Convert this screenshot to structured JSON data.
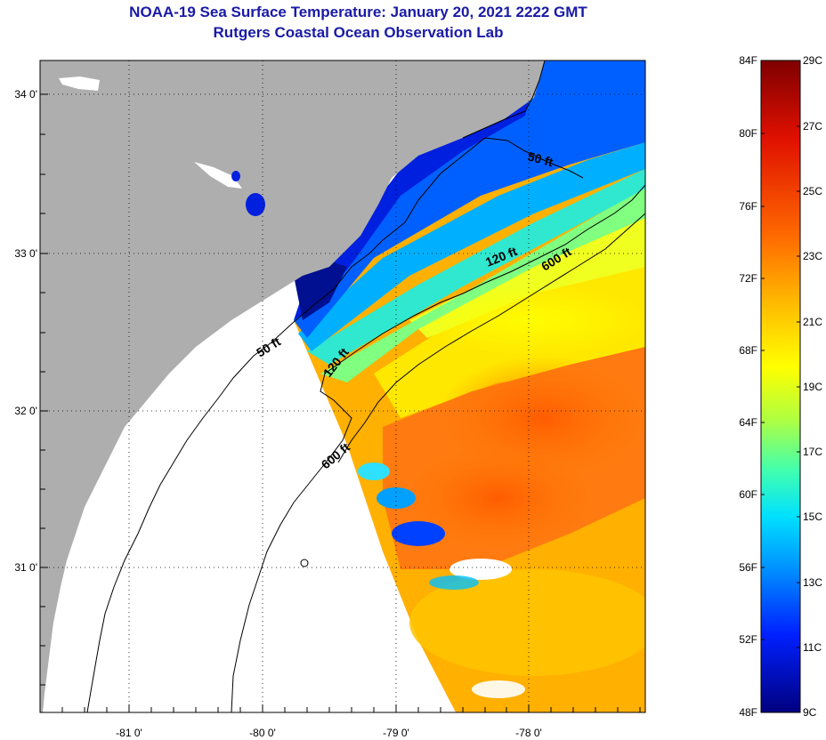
{
  "title": {
    "line1": "NOAA-19 Sea Surface Temperature:  January 20, 2021 2222 GMT",
    "line2": "Rutgers Coastal Ocean Observation Lab"
  },
  "axes": {
    "longitude_labels": [
      "-81 0'",
      "-80 0'",
      "-79 0'",
      "-78 0'"
    ],
    "latitude_labels": [
      "34 0'",
      "33 0'",
      "32 0'",
      "31 0'"
    ]
  },
  "contours": {
    "a": "50 ft",
    "b": "120 ft",
    "c": "600 ft",
    "d": "50 ft",
    "e": "120 ft",
    "f": "600 ft"
  },
  "colorbar": {
    "fahrenheit": [
      "84F",
      "80F",
      "76F",
      "72F",
      "68F",
      "64F",
      "60F",
      "56F",
      "52F",
      "48F"
    ],
    "celsius": [
      "29C",
      "27C",
      "25C",
      "23C",
      "21C",
      "19C",
      "17C",
      "15C",
      "13C",
      "11C",
      "9C"
    ]
  },
  "colors": {
    "land": "#aeaeae",
    "title": "#1a1aa6",
    "cold": "#00007f",
    "warm": "#7f0000"
  }
}
